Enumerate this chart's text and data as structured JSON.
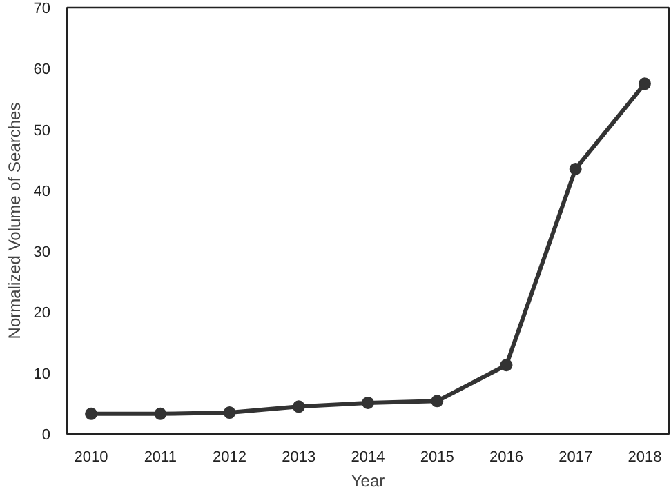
{
  "chart_data": {
    "type": "line",
    "xlabel": "Year",
    "ylabel": "Normalized Volume of Searches",
    "x": [
      2010,
      2011,
      2012,
      2013,
      2014,
      2015,
      2016,
      2017,
      2018
    ],
    "series": [
      {
        "color": "#333333",
        "values": [
          3.3,
          3.3,
          3.5,
          4.5,
          5.1,
          5.4,
          11.3,
          43.5,
          57.5
        ]
      }
    ],
    "xlim": [
      2009.65,
      2018.35
    ],
    "xticks": [
      2010,
      2011,
      2012,
      2013,
      2014,
      2015,
      2016,
      2017,
      2018
    ],
    "ylim": [
      0,
      70
    ],
    "yticks": [
      0,
      10,
      20,
      30,
      40,
      50,
      60,
      70
    ],
    "grid": false,
    "marker": "circle",
    "line_style": "solid"
  }
}
